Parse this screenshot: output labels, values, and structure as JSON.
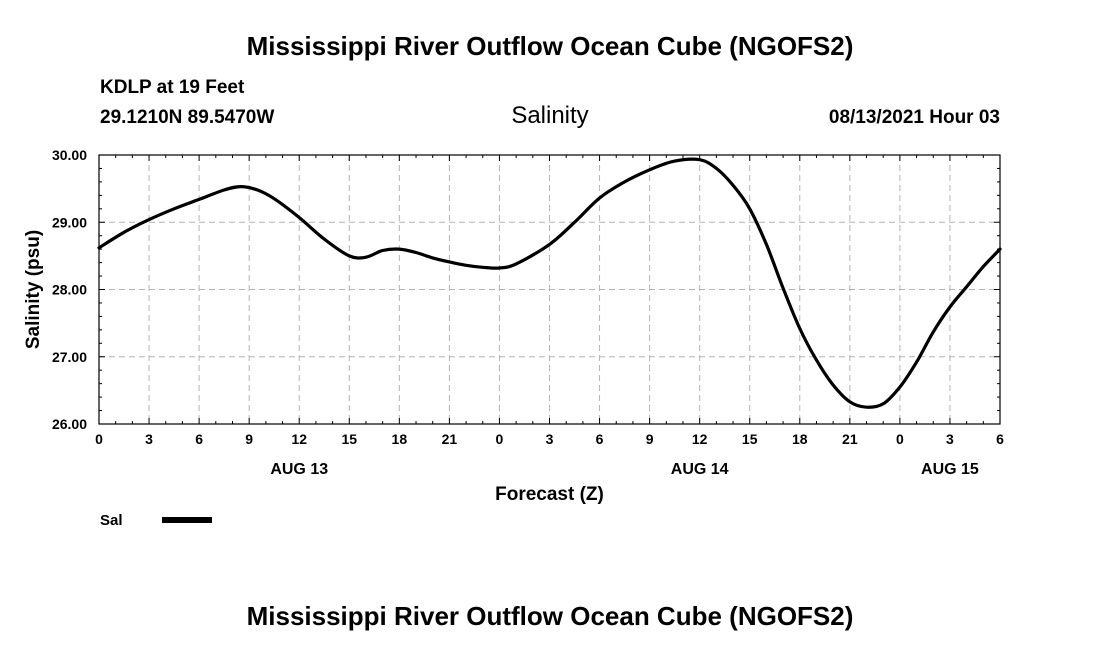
{
  "chart_data": {
    "type": "line",
    "title": "Mississippi River Outflow Ocean Cube (NGOFS2)",
    "footer_title": "Mississippi River Outflow Ocean Cube (NGOFS2)",
    "station": "KDLP at 19 Feet",
    "coords": "29.1210N  89.5470W",
    "subtitle": "Salinity",
    "issued": "08/13/2021 Hour 03",
    "xlabel": "Forecast (Z)",
    "ylabel": "Salinity (psu)",
    "xlim": [
      0,
      54
    ],
    "ylim": [
      26.0,
      30.0
    ],
    "yticks": [
      26.0,
      27.0,
      28.0,
      29.0,
      30.0
    ],
    "ytick_labels": [
      "26.00",
      "27.00",
      "28.00",
      "29.00",
      "30.00"
    ],
    "xticks": [
      0,
      3,
      6,
      9,
      12,
      15,
      18,
      21,
      24,
      27,
      30,
      33,
      36,
      39,
      42,
      45,
      48,
      51,
      54
    ],
    "xtick_labels": [
      "0",
      "3",
      "6",
      "9",
      "12",
      "15",
      "18",
      "21",
      "0",
      "3",
      "6",
      "9",
      "12",
      "15",
      "18",
      "21",
      "0",
      "3",
      "6"
    ],
    "day_labels": [
      {
        "x": 12,
        "label": "AUG 13"
      },
      {
        "x": 36,
        "label": "AUG 14"
      },
      {
        "x": 51,
        "label": "AUG 15"
      }
    ],
    "grid": true,
    "series": [
      {
        "name": "Sal",
        "x": [
          0,
          1.5,
          3,
          4.5,
          6,
          7.5,
          8.5,
          9.5,
          10.5,
          12,
          13.5,
          15,
          16,
          17,
          18,
          19,
          20,
          21,
          22,
          23,
          24,
          25,
          27,
          28.5,
          30,
          31.5,
          33,
          34.5,
          36,
          37,
          38,
          39,
          40,
          41,
          42,
          43,
          44,
          45,
          46,
          47,
          48,
          49,
          50,
          51,
          52,
          53,
          54
        ],
        "values": [
          28.62,
          28.85,
          29.04,
          29.2,
          29.34,
          29.48,
          29.53,
          29.48,
          29.35,
          29.07,
          28.75,
          28.5,
          28.48,
          28.58,
          28.6,
          28.55,
          28.47,
          28.41,
          28.36,
          28.33,
          28.32,
          28.38,
          28.67,
          29.0,
          29.36,
          29.6,
          29.78,
          29.91,
          29.93,
          29.8,
          29.55,
          29.2,
          28.67,
          28.02,
          27.42,
          26.95,
          26.58,
          26.33,
          26.25,
          26.3,
          26.55,
          26.92,
          27.37,
          27.74,
          28.04,
          28.34,
          28.6
        ]
      }
    ],
    "legend": {
      "label": "Sal",
      "placement": "bottom-left"
    },
    "colors": {
      "line": "#000000",
      "grid": "#b4b4b4",
      "axis": "#000000"
    }
  }
}
